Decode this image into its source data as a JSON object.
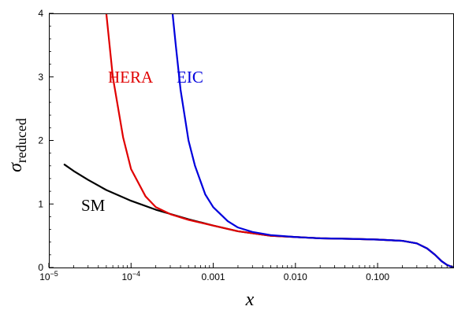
{
  "chart_data": {
    "type": "line",
    "xlabel": "x",
    "ylabel": {
      "symbol": "σ",
      "subscript": "reduced"
    },
    "x_scale": "log",
    "xlim": [
      1e-05,
      0.85
    ],
    "ylim": [
      0,
      4
    ],
    "grid": false,
    "y_ticks": [
      0,
      1,
      2,
      3,
      4
    ],
    "y_tick_labels": [
      "0",
      "1",
      "2",
      "3",
      "4"
    ],
    "x_ticks": [
      {
        "value": 1e-05,
        "base": "10",
        "exp": "−5"
      },
      {
        "value": 0.0001,
        "base": "10",
        "exp": "−4"
      },
      {
        "value": 0.001,
        "label": "0.001"
      },
      {
        "value": 0.01,
        "label": "0.010"
      },
      {
        "value": 0.1,
        "label": "0.100"
      }
    ],
    "series": [
      {
        "name": "SM",
        "color": "#000000",
        "x": [
          1.55e-05,
          2e-05,
          3e-05,
          5e-05,
          0.0001,
          0.0002,
          0.0005,
          0.001,
          0.002,
          0.005,
          0.01,
          0.02,
          0.05,
          0.1,
          0.2,
          0.3,
          0.4,
          0.5,
          0.6,
          0.7,
          0.8,
          0.85
        ],
        "y": [
          1.62,
          1.52,
          1.38,
          1.22,
          1.05,
          0.91,
          0.76,
          0.66,
          0.57,
          0.5,
          0.48,
          0.46,
          0.45,
          0.44,
          0.42,
          0.38,
          0.3,
          0.2,
          0.1,
          0.04,
          0.01,
          0.0
        ]
      },
      {
        "name": "HERA",
        "color": "#e00000",
        "x": [
          5e-05,
          6e-05,
          8e-05,
          0.0001,
          0.00015,
          0.0002,
          0.0003,
          0.0005,
          0.001,
          0.002,
          0.005,
          0.01,
          0.02,
          0.05,
          0.1,
          0.2,
          0.3,
          0.4,
          0.5,
          0.6,
          0.7,
          0.8,
          0.85
        ],
        "y": [
          4.0,
          3.0,
          2.05,
          1.55,
          1.12,
          0.95,
          0.84,
          0.75,
          0.66,
          0.57,
          0.5,
          0.48,
          0.46,
          0.45,
          0.44,
          0.42,
          0.38,
          0.3,
          0.2,
          0.1,
          0.04,
          0.01,
          0.0
        ]
      },
      {
        "name": "EIC",
        "color": "#0000dd",
        "x": [
          0.00032,
          0.00035,
          0.0004,
          0.0005,
          0.0006,
          0.0008,
          0.001,
          0.0015,
          0.002,
          0.003,
          0.005,
          0.01,
          0.02,
          0.05,
          0.1,
          0.2,
          0.3,
          0.4,
          0.5,
          0.6,
          0.7,
          0.8,
          0.85
        ],
        "y": [
          4.0,
          3.5,
          2.8,
          2.0,
          1.6,
          1.15,
          0.95,
          0.73,
          0.63,
          0.56,
          0.51,
          0.48,
          0.46,
          0.45,
          0.44,
          0.42,
          0.38,
          0.3,
          0.2,
          0.1,
          0.04,
          0.01,
          0.0
        ]
      }
    ]
  }
}
